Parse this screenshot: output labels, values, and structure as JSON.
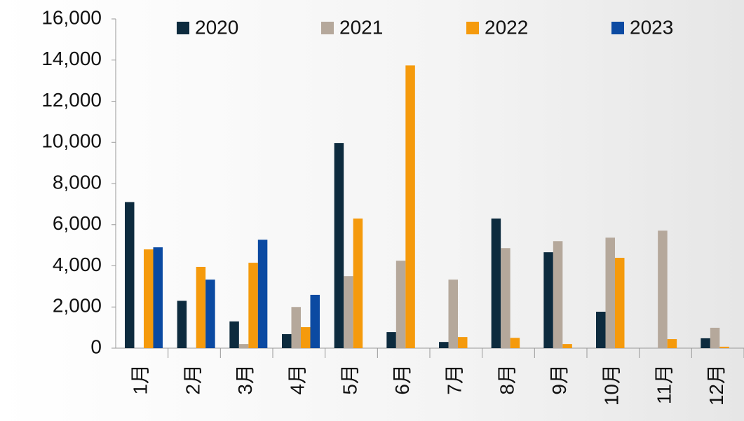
{
  "chart_data": {
    "type": "bar",
    "categories": [
      "1月",
      "2月",
      "3月",
      "4月",
      "5月",
      "6月",
      "7月",
      "8月",
      "9月",
      "10月",
      "11月",
      "12月"
    ],
    "series": [
      {
        "name": "2020",
        "color": "#0d2b3e",
        "values": [
          7100,
          2300,
          1300,
          680,
          9970,
          780,
          300,
          6300,
          4660,
          1770,
          0,
          480
        ]
      },
      {
        "name": "2021",
        "color": "#b5a89b",
        "values": [
          0,
          0,
          200,
          2000,
          3500,
          4250,
          3330,
          4860,
          5200,
          5370,
          5710,
          990
        ]
      },
      {
        "name": "2022",
        "color": "#f59a0c",
        "values": [
          4800,
          3950,
          4150,
          1020,
          6300,
          13740,
          540,
          500,
          200,
          4390,
          440,
          70
        ]
      },
      {
        "name": "2023",
        "color": "#0b4aa2",
        "values": [
          4900,
          3330,
          5270,
          2590,
          null,
          null,
          null,
          null,
          null,
          null,
          null,
          null
        ]
      }
    ],
    "ylim": [
      0,
      16000
    ],
    "yticks": [
      0,
      {
        "value": 2000,
        "label": "2,000"
      },
      {
        "value": 4000,
        "label": "4,000"
      },
      {
        "value": 6000,
        "label": "6,000"
      },
      {
        "value": 8000,
        "label": "8,000"
      },
      {
        "value": 10000,
        "label": "10,000"
      },
      {
        "value": 12000,
        "label": "12,000"
      },
      {
        "value": 14000,
        "label": "14,000"
      },
      {
        "value": 16000,
        "label": "16,000"
      }
    ],
    "grid": false,
    "legend": "top"
  }
}
